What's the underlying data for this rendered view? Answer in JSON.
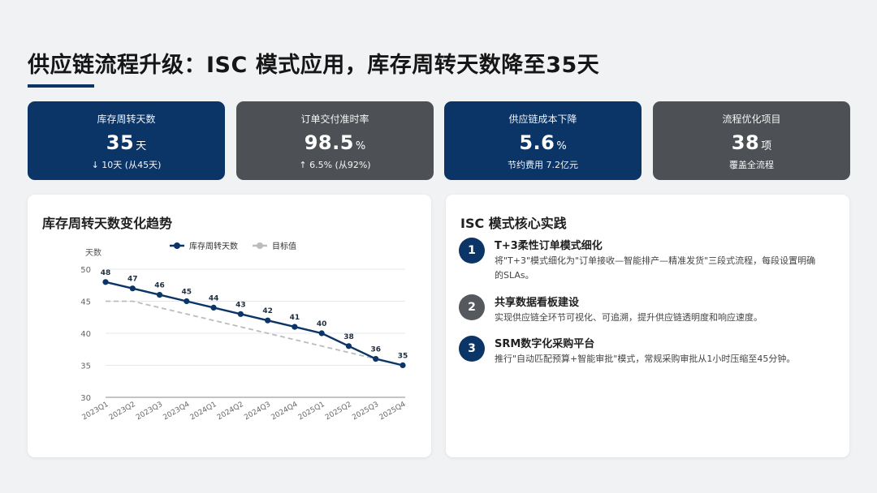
{
  "header": {
    "title": "供应链流程升级：ISC 模式应用，库存周转天数降至35天"
  },
  "kpis": [
    {
      "label": "库存周转天数",
      "value": "35",
      "unit": "天",
      "sub": "↓ 10天 (从45天)",
      "style": "blue"
    },
    {
      "label": "订单交付准时率",
      "value": "98.5",
      "unit": "%",
      "sub": "↑ 6.5% (从92%)",
      "style": "gray"
    },
    {
      "label": "供应链成本下降",
      "value": "5.6",
      "unit": "%",
      "sub": "节约费用 7.2亿元",
      "style": "blue"
    },
    {
      "label": "流程优化项目",
      "value": "38",
      "unit": "项",
      "sub": "覆盖全流程",
      "style": "gray"
    }
  ],
  "chart_panel": {
    "title": "库存周转天数变化趋势"
  },
  "chart_data": {
    "type": "line",
    "title": "库存周转天数变化趋势",
    "ylabel": "天数",
    "xlabel": "",
    "ylim": [
      30,
      50
    ],
    "yticks": [
      30,
      35,
      40,
      45,
      50
    ],
    "grid": true,
    "legend_position": "top",
    "categories": [
      "2023Q1",
      "2023Q2",
      "2023Q3",
      "2023Q4",
      "2024Q1",
      "2024Q2",
      "2024Q3",
      "2024Q4",
      "2025Q1",
      "2025Q2",
      "2025Q3",
      "2025Q4"
    ],
    "series": [
      {
        "name": "库存周转天数",
        "values": [
          48,
          47,
          46,
          45,
          44,
          43,
          42,
          41,
          40,
          38,
          36,
          35
        ],
        "color": "#0b3566",
        "data_labels": true
      },
      {
        "name": "目标值",
        "values": [
          45,
          45,
          44,
          43,
          42,
          41,
          40,
          39,
          38,
          37,
          36,
          35
        ],
        "color": "#b9bcc1",
        "dashed": true
      }
    ]
  },
  "practice_panel": {
    "title": "ISC 模式核心实践",
    "items": [
      {
        "num": "1",
        "title": "T+3柔性订单模式细化",
        "desc": "将\"T+3\"模式细化为\"订单接收—智能排产—精准发货\"三段式流程，每段设置明确的SLAs。",
        "style": "blue"
      },
      {
        "num": "2",
        "title": "共享数据看板建设",
        "desc": "实现供应链全环节可视化、可追溯，提升供应链透明度和响应速度。",
        "style": "gray"
      },
      {
        "num": "3",
        "title": "SRM数字化采购平台",
        "desc": "推行\"自动匹配预算+智能审批\"模式，常规采购审批从1小时压缩至45分钟。",
        "style": "blue"
      }
    ]
  }
}
